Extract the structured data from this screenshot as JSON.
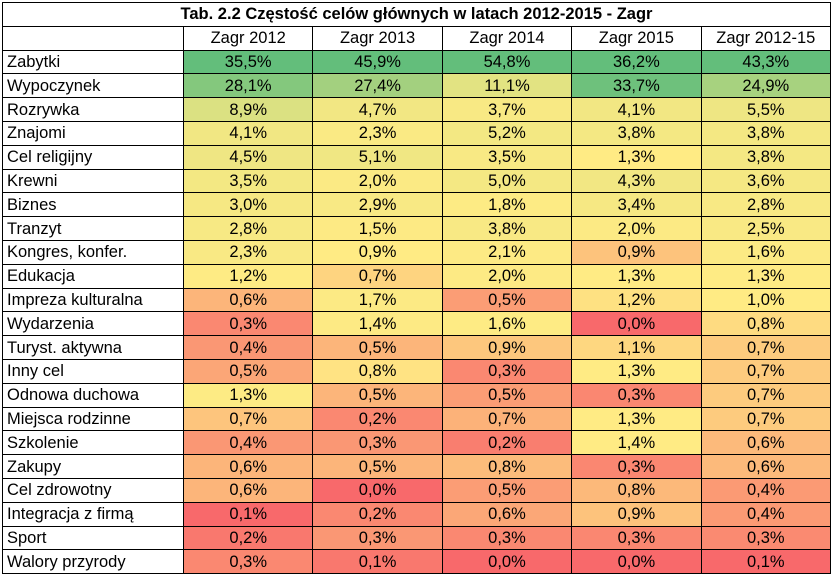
{
  "title": "Tab. 2.2 Częstość celów głównych w latach 2012-2015 - Zagr",
  "columns": [
    "Zagr 2012",
    "Zagr 2013",
    "Zagr 2014",
    "Zagr 2015",
    "Zagr 2012-15"
  ],
  "rows": [
    {
      "label": "Zabytki",
      "values": [
        "35,5%",
        "45,9%",
        "54,8%",
        "36,2%",
        "43,3%"
      ]
    },
    {
      "label": "Wypoczynek",
      "values": [
        "28,1%",
        "27,4%",
        "11,1%",
        "33,7%",
        "24,9%"
      ]
    },
    {
      "label": "Rozrywka",
      "values": [
        "8,9%",
        "4,7%",
        "3,7%",
        "4,1%",
        "5,5%"
      ]
    },
    {
      "label": "Znajomi",
      "values": [
        "4,1%",
        "2,3%",
        "5,2%",
        "3,8%",
        "3,8%"
      ]
    },
    {
      "label": "Cel religijny",
      "values": [
        "4,5%",
        "5,1%",
        "3,5%",
        "1,3%",
        "3,8%"
      ]
    },
    {
      "label": "Krewni",
      "values": [
        "3,5%",
        "2,0%",
        "5,0%",
        "4,3%",
        "3,6%"
      ]
    },
    {
      "label": "Biznes",
      "values": [
        "3,0%",
        "2,9%",
        "1,8%",
        "3,4%",
        "2,8%"
      ]
    },
    {
      "label": "Tranzyt",
      "values": [
        "2,8%",
        "1,5%",
        "3,8%",
        "2,0%",
        "2,5%"
      ]
    },
    {
      "label": "Kongres, konfer.",
      "values": [
        "2,3%",
        "0,9%",
        "2,1%",
        "0,9%",
        "1,6%"
      ]
    },
    {
      "label": "Edukacja",
      "values": [
        "1,2%",
        "0,7%",
        "2,0%",
        "1,3%",
        "1,3%"
      ]
    },
    {
      "label": "Impreza kulturalna",
      "values": [
        "0,6%",
        "1,7%",
        "0,5%",
        "1,2%",
        "1,0%"
      ]
    },
    {
      "label": "Wydarzenia",
      "values": [
        "0,3%",
        "1,4%",
        "1,6%",
        "0,0%",
        "0,8%"
      ]
    },
    {
      "label": "Turyst. aktywna",
      "values": [
        "0,4%",
        "0,5%",
        "0,9%",
        "1,1%",
        "0,7%"
      ]
    },
    {
      "label": "Inny cel",
      "values": [
        "0,5%",
        "0,8%",
        "0,3%",
        "1,3%",
        "0,7%"
      ]
    },
    {
      "label": "Odnowa duchowa",
      "values": [
        "1,3%",
        "0,5%",
        "0,5%",
        "0,3%",
        "0,7%"
      ]
    },
    {
      "label": "Miejsca rodzinne",
      "values": [
        "0,7%",
        "0,2%",
        "0,7%",
        "1,3%",
        "0,7%"
      ]
    },
    {
      "label": "Szkolenie",
      "values": [
        "0,4%",
        "0,3%",
        "0,2%",
        "1,4%",
        "0,6%"
      ]
    },
    {
      "label": "Zakupy",
      "values": [
        "0,6%",
        "0,5%",
        "0,8%",
        "0,3%",
        "0,6%"
      ]
    },
    {
      "label": "Cel zdrowotny",
      "values": [
        "0,6%",
        "0,0%",
        "0,5%",
        "0,8%",
        "0,4%"
      ]
    },
    {
      "label": "Integracja z firmą",
      "values": [
        "0,1%",
        "0,2%",
        "0,6%",
        "0,9%",
        "0,4%"
      ]
    },
    {
      "label": "Sport",
      "values": [
        "0,2%",
        "0,3%",
        "0,3%",
        "0,3%",
        "0,3%"
      ]
    },
    {
      "label": "Walory przyrody",
      "values": [
        "0,3%",
        "0,1%",
        "0,0%",
        "0,0%",
        "0,1%"
      ]
    }
  ],
  "heatmap_colors": {
    "low": "#f8696b",
    "mid": "#ffeb84",
    "high": "#63be7b"
  }
}
